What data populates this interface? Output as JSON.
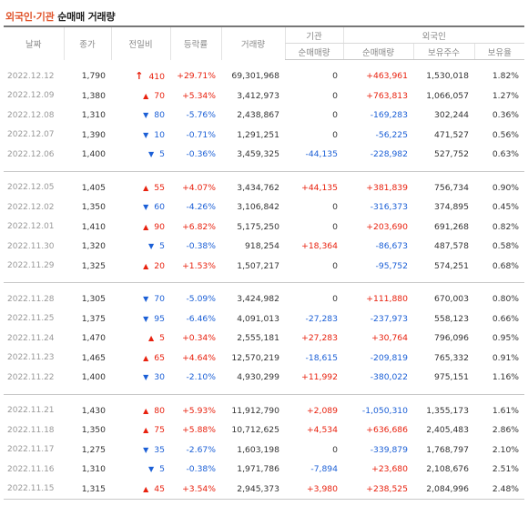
{
  "title": {
    "part1": "외국인·기관",
    "part2": " 순매매 거래량"
  },
  "headers": {
    "date": "날짜",
    "close": "종가",
    "change": "전일비",
    "rate": "등락률",
    "volume": "거래량",
    "inst": "기관",
    "foreign": "외국인",
    "inst_net": "순매매량",
    "foreign_net": "순매매량",
    "holdings": "보유주수",
    "hold_rate": "보유율"
  },
  "colors": {
    "up": "#e8210e",
    "down": "#1b5fd6"
  },
  "groups": [
    [
      {
        "date": "2022.12.12",
        "close": "1,790",
        "dir": "limit-up",
        "change": "410",
        "rate": "+29.71%",
        "volume": "69,301,968",
        "inst": "0",
        "foreign": "+463,961",
        "holdings": "1,530,018",
        "hold_rate": "1.82%"
      },
      {
        "date": "2022.12.09",
        "close": "1,380",
        "dir": "up",
        "change": "70",
        "rate": "+5.34%",
        "volume": "3,412,973",
        "inst": "0",
        "foreign": "+763,813",
        "holdings": "1,066,057",
        "hold_rate": "1.27%"
      },
      {
        "date": "2022.12.08",
        "close": "1,310",
        "dir": "down",
        "change": "80",
        "rate": "-5.76%",
        "volume": "2,438,867",
        "inst": "0",
        "foreign": "-169,283",
        "holdings": "302,244",
        "hold_rate": "0.36%"
      },
      {
        "date": "2022.12.07",
        "close": "1,390",
        "dir": "down",
        "change": "10",
        "rate": "-0.71%",
        "volume": "1,291,251",
        "inst": "0",
        "foreign": "-56,225",
        "holdings": "471,527",
        "hold_rate": "0.56%"
      },
      {
        "date": "2022.12.06",
        "close": "1,400",
        "dir": "down",
        "change": "5",
        "rate": "-0.36%",
        "volume": "3,459,325",
        "inst": "-44,135",
        "foreign": "-228,982",
        "holdings": "527,752",
        "hold_rate": "0.63%"
      }
    ],
    [
      {
        "date": "2022.12.05",
        "close": "1,405",
        "dir": "up",
        "change": "55",
        "rate": "+4.07%",
        "volume": "3,434,762",
        "inst": "+44,135",
        "foreign": "+381,839",
        "holdings": "756,734",
        "hold_rate": "0.90%"
      },
      {
        "date": "2022.12.02",
        "close": "1,350",
        "dir": "down",
        "change": "60",
        "rate": "-4.26%",
        "volume": "3,106,842",
        "inst": "0",
        "foreign": "-316,373",
        "holdings": "374,895",
        "hold_rate": "0.45%"
      },
      {
        "date": "2022.12.01",
        "close": "1,410",
        "dir": "up",
        "change": "90",
        "rate": "+6.82%",
        "volume": "5,175,250",
        "inst": "0",
        "foreign": "+203,690",
        "holdings": "691,268",
        "hold_rate": "0.82%"
      },
      {
        "date": "2022.11.30",
        "close": "1,320",
        "dir": "down",
        "change": "5",
        "rate": "-0.38%",
        "volume": "918,254",
        "inst": "+18,364",
        "foreign": "-86,673",
        "holdings": "487,578",
        "hold_rate": "0.58%"
      },
      {
        "date": "2022.11.29",
        "close": "1,325",
        "dir": "up",
        "change": "20",
        "rate": "+1.53%",
        "volume": "1,507,217",
        "inst": "0",
        "foreign": "-95,752",
        "holdings": "574,251",
        "hold_rate": "0.68%"
      }
    ],
    [
      {
        "date": "2022.11.28",
        "close": "1,305",
        "dir": "down",
        "change": "70",
        "rate": "-5.09%",
        "volume": "3,424,982",
        "inst": "0",
        "foreign": "+111,880",
        "holdings": "670,003",
        "hold_rate": "0.80%"
      },
      {
        "date": "2022.11.25",
        "close": "1,375",
        "dir": "down",
        "change": "95",
        "rate": "-6.46%",
        "volume": "4,091,013",
        "inst": "-27,283",
        "foreign": "-237,973",
        "holdings": "558,123",
        "hold_rate": "0.66%"
      },
      {
        "date": "2022.11.24",
        "close": "1,470",
        "dir": "up",
        "change": "5",
        "rate": "+0.34%",
        "volume": "2,555,181",
        "inst": "+27,283",
        "foreign": "+30,764",
        "holdings": "796,096",
        "hold_rate": "0.95%"
      },
      {
        "date": "2022.11.23",
        "close": "1,465",
        "dir": "up",
        "change": "65",
        "rate": "+4.64%",
        "volume": "12,570,219",
        "inst": "-18,615",
        "foreign": "-209,819",
        "holdings": "765,332",
        "hold_rate": "0.91%"
      },
      {
        "date": "2022.11.22",
        "close": "1,400",
        "dir": "down",
        "change": "30",
        "rate": "-2.10%",
        "volume": "4,930,299",
        "inst": "+11,992",
        "foreign": "-380,022",
        "holdings": "975,151",
        "hold_rate": "1.16%"
      }
    ],
    [
      {
        "date": "2022.11.21",
        "close": "1,430",
        "dir": "up",
        "change": "80",
        "rate": "+5.93%",
        "volume": "11,912,790",
        "inst": "+2,089",
        "foreign": "-1,050,310",
        "holdings": "1,355,173",
        "hold_rate": "1.61%"
      },
      {
        "date": "2022.11.18",
        "close": "1,350",
        "dir": "up",
        "change": "75",
        "rate": "+5.88%",
        "volume": "10,712,625",
        "inst": "+4,534",
        "foreign": "+636,686",
        "holdings": "2,405,483",
        "hold_rate": "2.86%"
      },
      {
        "date": "2022.11.17",
        "close": "1,275",
        "dir": "down",
        "change": "35",
        "rate": "-2.67%",
        "volume": "1,603,198",
        "inst": "0",
        "foreign": "-339,879",
        "holdings": "1,768,797",
        "hold_rate": "2.10%"
      },
      {
        "date": "2022.11.16",
        "close": "1,310",
        "dir": "down",
        "change": "5",
        "rate": "-0.38%",
        "volume": "1,971,786",
        "inst": "-7,894",
        "foreign": "+23,680",
        "holdings": "2,108,676",
        "hold_rate": "2.51%"
      },
      {
        "date": "2022.11.15",
        "close": "1,315",
        "dir": "up",
        "change": "45",
        "rate": "+3.54%",
        "volume": "2,945,373",
        "inst": "+3,980",
        "foreign": "+238,525",
        "holdings": "2,084,996",
        "hold_rate": "2.48%"
      }
    ]
  ]
}
